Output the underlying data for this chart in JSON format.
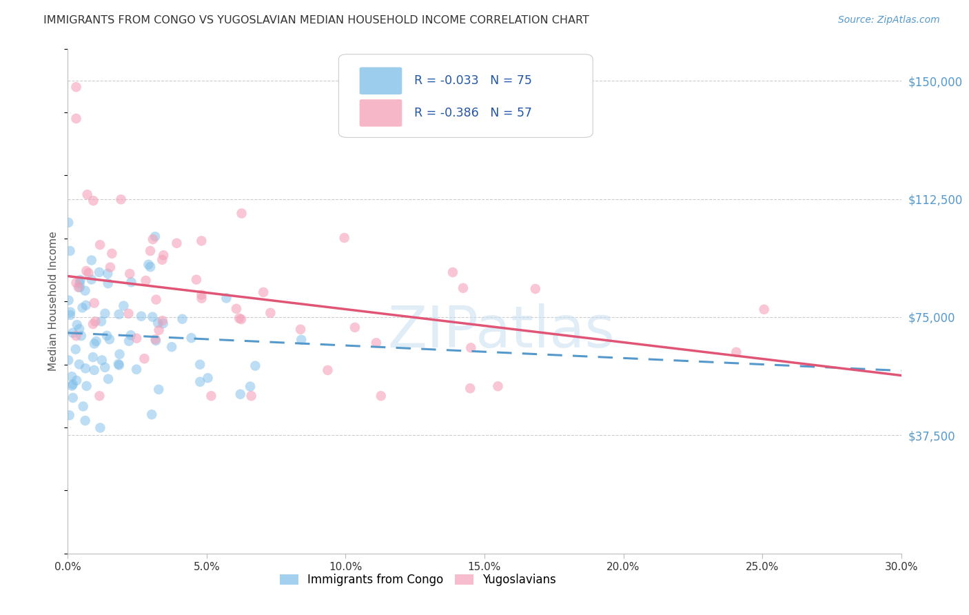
{
  "title": "IMMIGRANTS FROM CONGO VS YUGOSLAVIAN MEDIAN HOUSEHOLD INCOME CORRELATION CHART",
  "source": "Source: ZipAtlas.com",
  "ylabel": "Median Household Income",
  "xlabel_ticks": [
    "0.0%",
    "5.0%",
    "10.0%",
    "15.0%",
    "20.0%",
    "25.0%",
    "30.0%"
  ],
  "xlabel_vals": [
    0.0,
    5.0,
    10.0,
    15.0,
    20.0,
    25.0,
    30.0
  ],
  "ylabel_ticks": [
    "$150,000",
    "$112,500",
    "$75,000",
    "$37,500"
  ],
  "ylabel_vals": [
    150000,
    112500,
    75000,
    37500
  ],
  "xlim": [
    0.0,
    30.0
  ],
  "ylim": [
    0,
    160000
  ],
  "congo_R": -0.033,
  "congo_N": 75,
  "yugoslav_R": -0.386,
  "yugoslav_N": 57,
  "congo_color": "#7bbde8",
  "yugoslav_color": "#f4a0b8",
  "trend_congo_color": "#5599cc",
  "trend_yugoslav_color": "#e05575",
  "legend_label_congo": "Immigrants from Congo",
  "legend_label_yugoslav": "Yugoslavians",
  "watermark": "ZIPatlas",
  "background_color": "#ffffff",
  "grid_color": "#cccccc",
  "title_color": "#333333",
  "source_color": "#5599cc",
  "tick_color_right": "#5599cc",
  "tick_color_bottom": "#333333",
  "seed": 99
}
